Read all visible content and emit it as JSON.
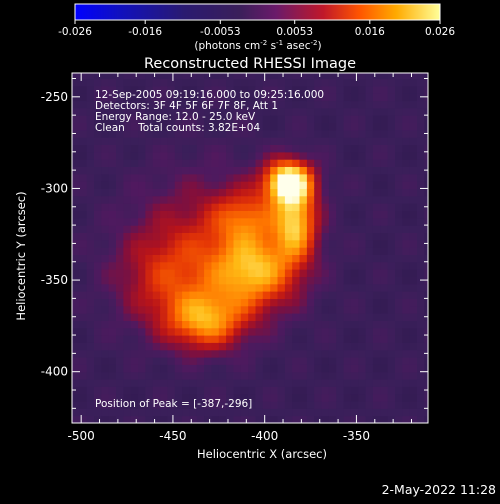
{
  "colorbar": {
    "ticks": [
      "-0.026",
      "-0.016",
      "-0.0053",
      "0.0053",
      "0.016",
      "0.026"
    ],
    "tick_values": [
      -0.026,
      -0.016,
      -0.0053,
      0.0053,
      0.016,
      0.026
    ],
    "range": [
      -0.026,
      0.026
    ],
    "unit_main": "(photons cm",
    "unit_sup1": "-2",
    "unit_mid": " s",
    "unit_sup2": "-1",
    "unit_mid2": " asec",
    "unit_sup3": "-2",
    "unit_end": ")"
  },
  "chart_data": {
    "type": "heatmap",
    "title": "Reconstructed RHESSI Image",
    "xlabel": "Heliocentric X (arcsec)",
    "ylabel": "Heliocentric Y (arcsec)",
    "xlim": [
      -505,
      -311
    ],
    "ylim": [
      -428,
      -237
    ],
    "x_ticks": [
      -500,
      -450,
      -400,
      -350
    ],
    "y_ticks": [
      -250,
      -300,
      -350,
      -400
    ],
    "colormap": "RHESSI thermal (black-purple-red-orange-yellow-white)",
    "peak": [
      -387,
      -296
    ],
    "sources": [
      {
        "x": -387,
        "y": -296,
        "sigma_x": 9,
        "sigma_y": 8,
        "amplitude": 1.0
      },
      {
        "x": -383,
        "y": -318,
        "sigma_x": 8,
        "sigma_y": 14,
        "amplitude": 0.7
      },
      {
        "x": -405,
        "y": -345,
        "sigma_x": 16,
        "sigma_y": 14,
        "amplitude": 0.62
      },
      {
        "x": -432,
        "y": -372,
        "sigma_x": 15,
        "sigma_y": 11,
        "amplitude": 0.6
      },
      {
        "x": -410,
        "y": -315,
        "sigma_x": 12,
        "sigma_y": 10,
        "amplitude": 0.35
      },
      {
        "x": -430,
        "y": -330,
        "sigma_x": 28,
        "sigma_y": 26,
        "amplitude": 0.3
      },
      {
        "x": -455,
        "y": -350,
        "sigma_x": 18,
        "sigma_y": 18,
        "amplitude": 0.28
      }
    ]
  },
  "annotation": {
    "line1": "12-Sep-2005 09:19:16.000 to 09:25:16.000",
    "line2": "Detectors: 3F 4F 5F 6F 7F 8F, Att 1",
    "line3": "Energy Range: 12.0 - 25.0 keV",
    "line4": "Clean    Total counts: 3.82E+04",
    "peak_label": "Position of Peak = [-387,-296]"
  },
  "footer": {
    "timestamp": "2-May-2022 11:28"
  },
  "colors": {
    "background": "#000000",
    "axes": "#ffffff",
    "low": "#3a1f5a",
    "high": "#ffffff"
  }
}
